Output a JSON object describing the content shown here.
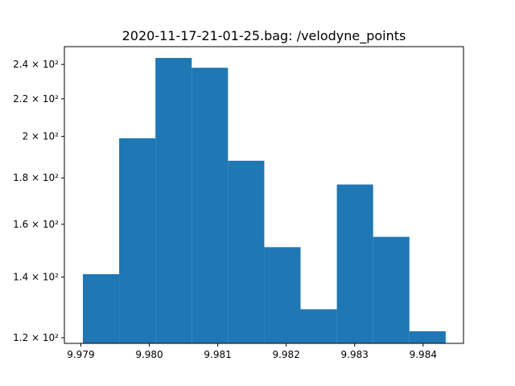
{
  "chart_data": {
    "type": "bar",
    "title": "2020-11-17-21-01-25.bag: /velodyne_points",
    "xlabel": "",
    "ylabel": "",
    "yscale": "log",
    "bar_color": "#1f77b4",
    "bin_edges": [
      9.97903,
      9.97956,
      9.98009,
      9.98062,
      9.98115,
      9.98168,
      9.98221,
      9.98274,
      9.98327,
      9.9838,
      9.98433
    ],
    "values": [
      141,
      199,
      244,
      238,
      188,
      151,
      129,
      177,
      155,
      122
    ],
    "xlim": [
      9.97876,
      9.98459
    ],
    "ylim": [
      118.3,
      251.1
    ],
    "x_ticks": [
      {
        "value": 9.979,
        "label": "9.979"
      },
      {
        "value": 9.98,
        "label": "9.980"
      },
      {
        "value": 9.981,
        "label": "9.981"
      },
      {
        "value": 9.982,
        "label": "9.982"
      },
      {
        "value": 9.983,
        "label": "9.983"
      },
      {
        "value": 9.984,
        "label": "9.984"
      }
    ],
    "y_ticks": [
      {
        "value": 120,
        "label": "1.2 × 10²"
      },
      {
        "value": 140,
        "label": "1.4 × 10²"
      },
      {
        "value": 160,
        "label": "1.6 × 10²"
      },
      {
        "value": 180,
        "label": "1.8 × 10²"
      },
      {
        "value": 200,
        "label": "2 × 10²"
      },
      {
        "value": 220,
        "label": "2.2 × 10²"
      },
      {
        "value": 240,
        "label": "2.4 × 10²"
      }
    ]
  }
}
